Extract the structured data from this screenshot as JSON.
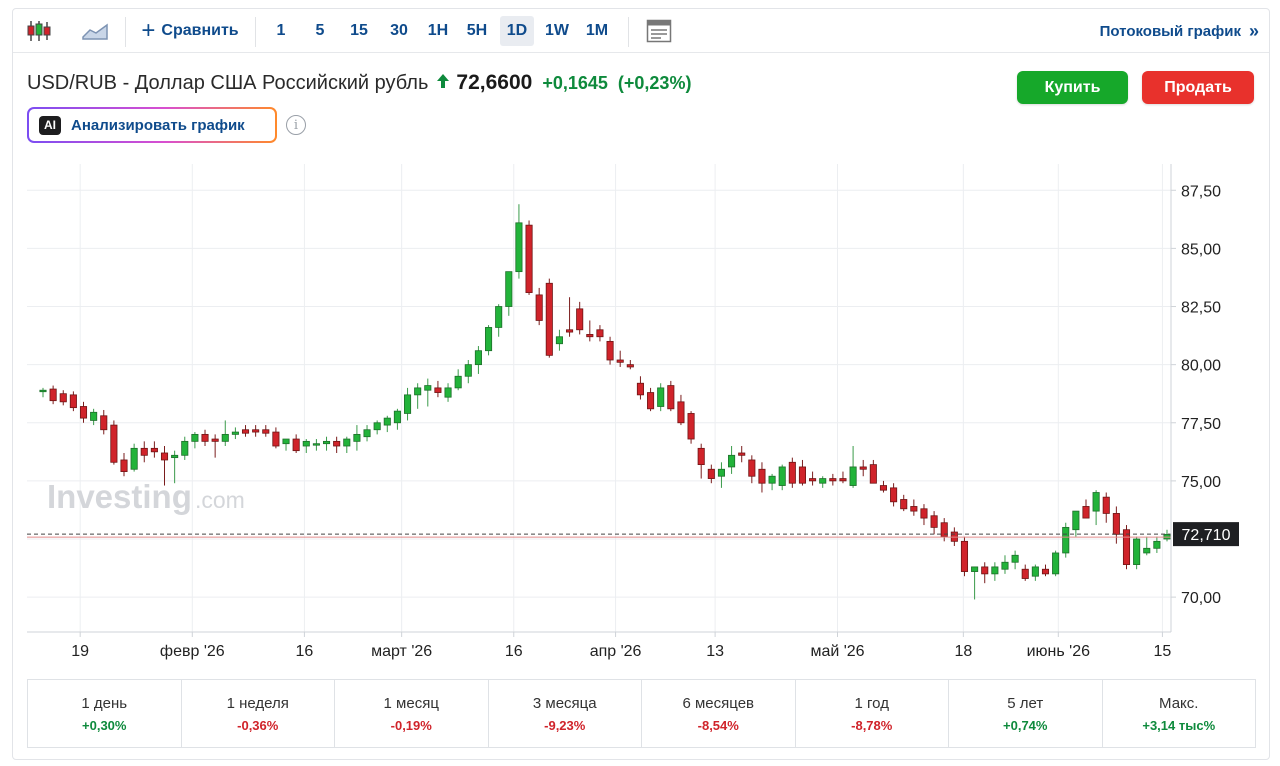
{
  "toolbar": {
    "compare_label": "Сравнить",
    "intervals": [
      "1",
      "5",
      "15",
      "30",
      "1H",
      "5H",
      "1D",
      "1W",
      "1M"
    ],
    "active_interval": "1D",
    "stream_label": "Потоковый график",
    "stream_chevron": "»"
  },
  "header": {
    "pair_name": "USD/RUB - Доллар США Российский рубль",
    "price": "72,6600",
    "change": "+0,1645",
    "change_pct": "(+0,23%)",
    "buy_label": "Купить",
    "sell_label": "Продать",
    "ai_badge": "AI",
    "ai_label": "Анализировать график",
    "info_glyph": "i"
  },
  "colors": {
    "up": "#22b33a",
    "down": "#d0232a",
    "link": "#0f4b8c",
    "buy": "#16a82a",
    "sell": "#e8312c"
  },
  "watermark": {
    "main": "Investing",
    "suffix": ".com"
  },
  "chart_data": {
    "type": "candlestick",
    "title": "",
    "ylim": [
      68.5,
      88.2
    ],
    "y_ticks": [
      "87,50",
      "85,00",
      "82,50",
      "80,00",
      "77,50",
      "75,00",
      "70,00"
    ],
    "y_tick_values": [
      87.5,
      85.0,
      82.5,
      80.0,
      77.5,
      75.0,
      70.0
    ],
    "x_ticks": [
      "19",
      "февр '26",
      "16",
      "март '26",
      "16",
      "апр '26",
      "13",
      "май '26",
      "18",
      "июнь '26",
      "15"
    ],
    "current_price_label": "72,710",
    "current_price": 72.71,
    "grid": true,
    "candles": [
      [
        78.85,
        79.0,
        78.6,
        78.9
      ],
      [
        78.95,
        79.1,
        78.3,
        78.45
      ],
      [
        78.75,
        78.9,
        78.25,
        78.4
      ],
      [
        78.7,
        78.85,
        78.0,
        78.15
      ],
      [
        78.2,
        78.4,
        77.5,
        77.7
      ],
      [
        77.6,
        78.1,
        77.4,
        77.95
      ],
      [
        77.8,
        78.05,
        77.0,
        77.2
      ],
      [
        77.4,
        77.6,
        75.7,
        75.8
      ],
      [
        75.9,
        76.2,
        75.2,
        75.4
      ],
      [
        75.5,
        76.6,
        75.4,
        76.4
      ],
      [
        76.4,
        76.7,
        75.8,
        76.1
      ],
      [
        76.4,
        76.7,
        76.0,
        76.25
      ],
      [
        76.2,
        76.5,
        74.8,
        75.9
      ],
      [
        76.0,
        76.3,
        74.9,
        76.1
      ],
      [
        76.1,
        76.9,
        75.9,
        76.7
      ],
      [
        76.7,
        77.1,
        76.4,
        77.0
      ],
      [
        77.0,
        77.2,
        76.5,
        76.7
      ],
      [
        76.8,
        77.0,
        76.0,
        76.7
      ],
      [
        76.7,
        77.6,
        76.5,
        77.0
      ],
      [
        77.0,
        77.3,
        76.8,
        77.1
      ],
      [
        77.2,
        77.4,
        76.9,
        77.05
      ],
      [
        77.2,
        77.4,
        76.9,
        77.1
      ],
      [
        77.2,
        77.4,
        76.9,
        77.05
      ],
      [
        77.1,
        77.3,
        76.4,
        76.5
      ],
      [
        76.6,
        76.8,
        76.3,
        76.8
      ],
      [
        76.8,
        77.0,
        76.2,
        76.3
      ],
      [
        76.5,
        76.8,
        76.2,
        76.7
      ],
      [
        76.6,
        76.8,
        76.3,
        76.6
      ],
      [
        76.6,
        76.9,
        76.3,
        76.7
      ],
      [
        76.7,
        76.9,
        76.2,
        76.5
      ],
      [
        76.5,
        76.9,
        76.2,
        76.8
      ],
      [
        76.7,
        77.4,
        76.3,
        77.0
      ],
      [
        76.9,
        77.4,
        76.7,
        77.2
      ],
      [
        77.2,
        77.6,
        77.0,
        77.5
      ],
      [
        77.4,
        77.8,
        77.1,
        77.7
      ],
      [
        77.5,
        78.1,
        77.2,
        78.0
      ],
      [
        77.9,
        79.0,
        77.6,
        78.7
      ],
      [
        78.7,
        79.2,
        78.1,
        79.0
      ],
      [
        78.9,
        79.4,
        78.2,
        79.1
      ],
      [
        79.0,
        79.3,
        78.6,
        78.8
      ],
      [
        78.6,
        79.2,
        78.4,
        79.0
      ],
      [
        79.0,
        79.8,
        78.9,
        79.5
      ],
      [
        79.5,
        80.2,
        79.2,
        80.0
      ],
      [
        80.0,
        80.8,
        79.6,
        80.6
      ],
      [
        80.6,
        81.7,
        80.4,
        81.6
      ],
      [
        81.6,
        82.6,
        81.2,
        82.5
      ],
      [
        82.5,
        84.0,
        82.1,
        84.0
      ],
      [
        84.0,
        86.9,
        83.7,
        86.1
      ],
      [
        86.0,
        86.2,
        83.0,
        83.1
      ],
      [
        83.0,
        83.3,
        81.7,
        81.9
      ],
      [
        83.5,
        83.7,
        80.3,
        80.4
      ],
      [
        80.9,
        81.5,
        80.6,
        81.2
      ],
      [
        81.5,
        82.9,
        81.2,
        81.4
      ],
      [
        82.4,
        82.7,
        81.3,
        81.5
      ],
      [
        81.3,
        81.9,
        81.0,
        81.2
      ],
      [
        81.5,
        81.7,
        81.0,
        81.2
      ],
      [
        81.0,
        81.2,
        80.0,
        80.2
      ],
      [
        80.2,
        80.6,
        79.9,
        80.1
      ],
      [
        80.0,
        80.2,
        79.8,
        79.9
      ],
      [
        79.2,
        79.5,
        78.5,
        78.7
      ],
      [
        78.8,
        79.0,
        78.0,
        78.1
      ],
      [
        78.2,
        79.2,
        78.0,
        79.0
      ],
      [
        79.1,
        79.3,
        78.0,
        78.1
      ],
      [
        78.4,
        78.7,
        77.4,
        77.5
      ],
      [
        77.9,
        78.0,
        76.6,
        76.8
      ],
      [
        76.4,
        76.6,
        75.1,
        75.7
      ],
      [
        75.5,
        75.7,
        74.9,
        75.1
      ],
      [
        75.2,
        75.8,
        74.7,
        75.5
      ],
      [
        75.6,
        76.5,
        75.3,
        76.1
      ],
      [
        76.2,
        76.5,
        75.8,
        76.1
      ],
      [
        75.9,
        76.1,
        74.9,
        75.2
      ],
      [
        75.5,
        75.8,
        74.5,
        74.9
      ],
      [
        74.9,
        75.3,
        74.6,
        75.2
      ],
      [
        74.8,
        75.7,
        74.6,
        75.6
      ],
      [
        75.8,
        76.0,
        74.7,
        74.9
      ],
      [
        75.6,
        75.9,
        74.8,
        74.9
      ],
      [
        75.1,
        75.4,
        74.8,
        75.0
      ],
      [
        74.9,
        75.2,
        74.7,
        75.1
      ],
      [
        75.1,
        75.3,
        74.8,
        75.0
      ],
      [
        75.1,
        75.4,
        74.9,
        75.0
      ],
      [
        74.8,
        76.5,
        74.7,
        75.6
      ],
      [
        75.6,
        75.9,
        75.2,
        75.5
      ],
      [
        75.7,
        75.9,
        74.9,
        74.9
      ],
      [
        74.8,
        75.0,
        74.5,
        74.6
      ],
      [
        74.7,
        74.9,
        73.9,
        74.1
      ],
      [
        74.2,
        74.4,
        73.7,
        73.8
      ],
      [
        73.9,
        74.2,
        73.5,
        73.7
      ],
      [
        73.8,
        74.0,
        73.1,
        73.4
      ],
      [
        73.5,
        73.7,
        72.7,
        73.0
      ],
      [
        73.2,
        73.4,
        72.4,
        72.6
      ],
      [
        72.8,
        73.0,
        72.2,
        72.4
      ],
      [
        72.4,
        72.6,
        70.9,
        71.1
      ],
      [
        71.1,
        71.3,
        69.9,
        71.3
      ],
      [
        71.3,
        71.5,
        70.6,
        71.0
      ],
      [
        71.0,
        71.5,
        70.7,
        71.3
      ],
      [
        71.2,
        71.8,
        71.0,
        71.5
      ],
      [
        71.5,
        72.0,
        71.2,
        71.8
      ],
      [
        71.2,
        71.4,
        70.7,
        70.8
      ],
      [
        70.9,
        71.4,
        70.7,
        71.3
      ],
      [
        71.2,
        71.4,
        70.9,
        71.0
      ],
      [
        71.0,
        72.0,
        70.9,
        71.9
      ],
      [
        71.9,
        73.2,
        71.7,
        73.0
      ],
      [
        72.9,
        73.6,
        72.6,
        73.7
      ],
      [
        73.9,
        74.2,
        73.4,
        73.4
      ],
      [
        73.7,
        74.6,
        73.1,
        74.5
      ],
      [
        74.3,
        74.5,
        73.2,
        73.6
      ],
      [
        73.6,
        73.9,
        72.3,
        72.7
      ],
      [
        72.9,
        73.1,
        71.2,
        71.4
      ],
      [
        71.4,
        72.6,
        71.2,
        72.5
      ],
      [
        71.9,
        72.6,
        71.8,
        72.1
      ],
      [
        72.1,
        72.6,
        71.9,
        72.4
      ],
      [
        72.5,
        72.9,
        72.4,
        72.7
      ]
    ]
  },
  "periods": [
    {
      "label": "1 день",
      "value": "+0,30%",
      "dir": "pos"
    },
    {
      "label": "1 неделя",
      "value": "-0,36%",
      "dir": "neg"
    },
    {
      "label": "1 месяц",
      "value": "-0,19%",
      "dir": "neg"
    },
    {
      "label": "3 месяца",
      "value": "-9,23%",
      "dir": "neg"
    },
    {
      "label": "6 месяцев",
      "value": "-8,54%",
      "dir": "neg"
    },
    {
      "label": "1 год",
      "value": "-8,78%",
      "dir": "neg"
    },
    {
      "label": "5 лет",
      "value": "+0,74%",
      "dir": "pos"
    },
    {
      "label": "Макс.",
      "value": "+3,14 тыс%",
      "dir": "pos"
    }
  ]
}
